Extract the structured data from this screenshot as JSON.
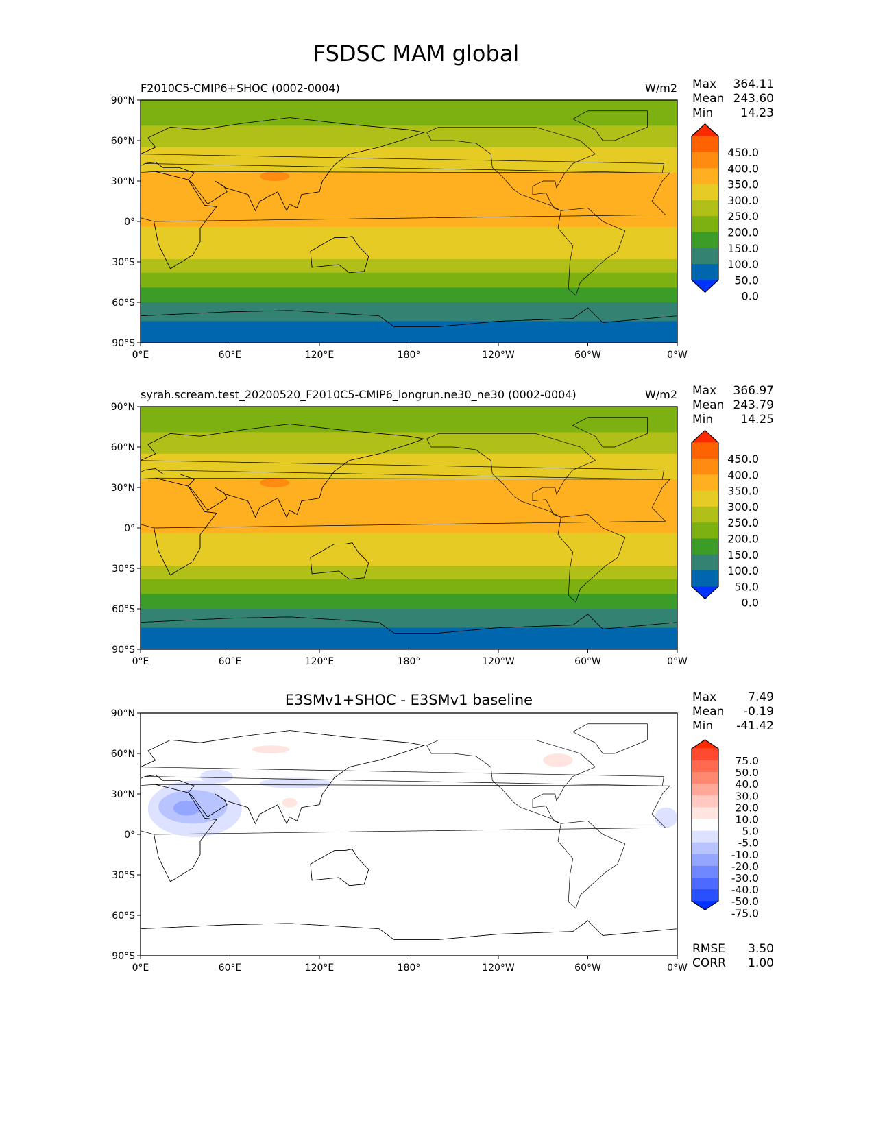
{
  "figure_title": "FSDSC MAM global",
  "chart_data": [
    {
      "type": "heatmap",
      "title_left": "F2010C5-CMIP6+SHOC (0002-0004)",
      "title_center": "",
      "units": "W/m2",
      "stats": [
        {
          "label": "Max",
          "value": "364.11"
        },
        {
          "label": "Mean",
          "value": "243.60"
        },
        {
          "label": "Min",
          "value": "14.23"
        }
      ],
      "colorbar": {
        "labels": [
          "450.0",
          "400.0",
          "350.0",
          "300.0",
          "250.0",
          "200.0",
          "150.0",
          "100.0",
          "50.0",
          "0.0"
        ],
        "colors": [
          "#ff2a00",
          "#ff6200",
          "#ff8c10",
          "#ffb020",
          "#e6cb25",
          "#b0c018",
          "#7db011",
          "#3c9c28",
          "#338272",
          "#0066ad",
          "#0033ff"
        ]
      },
      "zonal_bands": [
        {
          "lat": [
            90,
            71
          ],
          "bin": 6
        },
        {
          "lat": [
            71,
            55
          ],
          "bin": 5
        },
        {
          "lat": [
            55,
            36
          ],
          "bin": 4
        },
        {
          "lat": [
            36,
            -4
          ],
          "bin": 3
        },
        {
          "lat": [
            -4,
            -28
          ],
          "bin": 4
        },
        {
          "lat": [
            -28,
            -38
          ],
          "bin": 5
        },
        {
          "lat": [
            -38,
            -49
          ],
          "bin": 6
        },
        {
          "lat": [
            -49,
            -60
          ],
          "bin": 7
        },
        {
          "lat": [
            -60,
            -74
          ],
          "bin": 8
        },
        {
          "lat": [
            -74,
            -90
          ],
          "bin": 9
        }
      ],
      "blobs": [
        {
          "lon": [
            80,
            100
          ],
          "lat": [
            30,
            37
          ],
          "bin": 2
        }
      ],
      "lat_ticks": [
        "90°N",
        "60°N",
        "30°N",
        "0°",
        "30°S",
        "60°S",
        "90°S"
      ],
      "lon_ticks": [
        "0°E",
        "60°E",
        "120°E",
        "180°",
        "120°W",
        "60°W",
        "0°W"
      ]
    },
    {
      "type": "heatmap",
      "title_left": "syrah.scream.test_20200520_F2010C5-CMIP6_longrun.ne30_ne30 (0002-0004)",
      "title_center": "",
      "units": "W/m2",
      "stats": [
        {
          "label": "Max",
          "value": "366.97"
        },
        {
          "label": "Mean",
          "value": "243.79"
        },
        {
          "label": "Min",
          "value": "14.25"
        }
      ],
      "colorbar": {
        "labels": [
          "450.0",
          "400.0",
          "350.0",
          "300.0",
          "250.0",
          "200.0",
          "150.0",
          "100.0",
          "50.0",
          "0.0"
        ],
        "colors": [
          "#ff2a00",
          "#ff6200",
          "#ff8c10",
          "#ffb020",
          "#e6cb25",
          "#b0c018",
          "#7db011",
          "#3c9c28",
          "#338272",
          "#0066ad",
          "#0033ff"
        ]
      },
      "zonal_bands": [
        {
          "lat": [
            90,
            71
          ],
          "bin": 6
        },
        {
          "lat": [
            71,
            55
          ],
          "bin": 5
        },
        {
          "lat": [
            55,
            36
          ],
          "bin": 4
        },
        {
          "lat": [
            36,
            -4
          ],
          "bin": 3
        },
        {
          "lat": [
            -4,
            -28
          ],
          "bin": 4
        },
        {
          "lat": [
            -28,
            -38
          ],
          "bin": 5
        },
        {
          "lat": [
            -38,
            -49
          ],
          "bin": 6
        },
        {
          "lat": [
            -49,
            -60
          ],
          "bin": 7
        },
        {
          "lat": [
            -60,
            -74
          ],
          "bin": 8
        },
        {
          "lat": [
            -74,
            -90
          ],
          "bin": 9
        }
      ],
      "blobs": [
        {
          "lon": [
            80,
            100
          ],
          "lat": [
            30,
            37
          ],
          "bin": 2
        }
      ],
      "lat_ticks": [
        "90°N",
        "60°N",
        "30°N",
        "0°",
        "30°S",
        "60°S",
        "90°S"
      ],
      "lon_ticks": [
        "0°E",
        "60°E",
        "120°E",
        "180°",
        "120°W",
        "60°W",
        "0°W"
      ]
    },
    {
      "type": "heatmap",
      "title_left": "",
      "title_center": "E3SMv1+SHOC - E3SMv1 baseline",
      "units": "",
      "stats": [
        {
          "label": "Max",
          "value": "7.49"
        },
        {
          "label": "Mean",
          "value": "-0.19"
        },
        {
          "label": "Min",
          "value": "-41.42"
        }
      ],
      "colorbar": {
        "labels": [
          "75.0",
          "50.0",
          "40.0",
          "30.0",
          "20.0",
          "10.0",
          "5.0",
          "-5.0",
          "-10.0",
          "-20.0",
          "-30.0",
          "-40.0",
          "-50.0",
          "-75.0"
        ],
        "colors": [
          "#ff2a00",
          "#ff4a30",
          "#ff6a50",
          "#ff8870",
          "#ffa898",
          "#ffc8c0",
          "#ffe4e0",
          "#ffffff",
          "#dce2ff",
          "#b8c4ff",
          "#94a6ff",
          "#7088ff",
          "#4c6aff",
          "#2850ff",
          "#0033ff"
        ]
      },
      "zonal_bands": [
        {
          "lat": [
            90,
            -90
          ],
          "bin": 7
        }
      ],
      "blobs": [
        {
          "lon": [
            5,
            68
          ],
          "lat": [
            -2,
            40
          ],
          "bin": 8
        },
        {
          "lon": [
            12,
            58
          ],
          "lat": [
            8,
            33
          ],
          "bin": 9
        },
        {
          "lon": [
            22,
            40
          ],
          "lat": [
            14,
            25
          ],
          "bin": 10
        },
        {
          "lon": [
            40,
            62
          ],
          "lat": [
            38,
            48
          ],
          "bin": 8
        },
        {
          "lon": [
            80,
            128
          ],
          "lat": [
            34,
            42
          ],
          "bin": 8
        },
        {
          "lon": [
            75,
            100
          ],
          "lat": [
            60,
            66
          ],
          "bin": 6
        },
        {
          "lon": [
            95,
            105
          ],
          "lat": [
            20,
            27
          ],
          "bin": 6
        },
        {
          "lon": [
            270,
            290
          ],
          "lat": [
            50,
            60
          ],
          "bin": 6
        },
        {
          "lon": [
            345,
            360
          ],
          "lat": [
            5,
            20
          ],
          "bin": 8
        }
      ],
      "lat_ticks": [
        "90°N",
        "60°N",
        "30°N",
        "0°",
        "30°S",
        "60°S",
        "90°S"
      ],
      "lon_ticks": [
        "0°E",
        "60°E",
        "120°E",
        "180°",
        "120°W",
        "60°W",
        "0°W"
      ],
      "metrics": [
        {
          "label": "RMSE",
          "value": "3.50"
        },
        {
          "label": "CORR",
          "value": "1.00"
        }
      ]
    }
  ]
}
